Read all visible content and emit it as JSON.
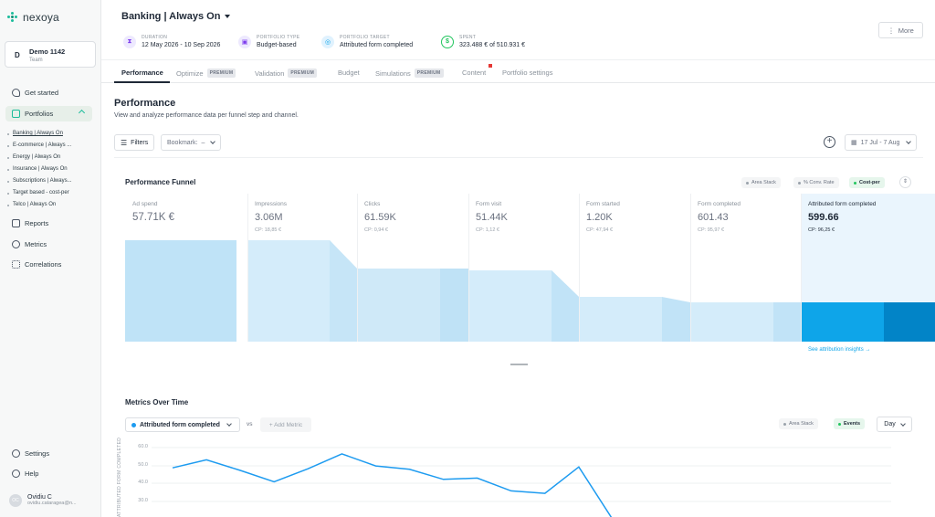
{
  "app": {
    "logo_text": "nexoya"
  },
  "team": {
    "initial": "D",
    "name": "Demo 1142",
    "type": "Team"
  },
  "sidebar": {
    "get_started": "Get started",
    "portfolios": "Portfolios",
    "portfolio_items": [
      "Banking | Always On",
      "E-commerce | Always ...",
      "Energy | Always On",
      "Insurance | Always On",
      "Subscriptions | Always...",
      "Target based - cost-per",
      "Telco | Always On"
    ],
    "reports": "Reports",
    "metrics": "Metrics",
    "correlations": "Correlations",
    "settings": "Settings",
    "help": "Help"
  },
  "user": {
    "initials": "OC",
    "name": "Ovidiu C",
    "email": "ovidiu.cataragea@n..."
  },
  "header": {
    "title": "Banking | Always On",
    "more_label": "More",
    "meta": [
      {
        "label": "DURATION",
        "value": "12 May 2026 - 10 Sep 2026",
        "icon": "hourglass-icon"
      },
      {
        "label": "PORTFOLIO TYPE",
        "value": "Budget-based",
        "icon": "basket-icon"
      },
      {
        "label": "PORTFOLIO TARGET",
        "value": "Attributed form completed",
        "icon": "target-icon"
      },
      {
        "label": "SPENT",
        "value": "323.488 € of 510.931 €",
        "icon": "dollar-icon"
      }
    ]
  },
  "tabs": [
    {
      "label": "Performance",
      "premium": false
    },
    {
      "label": "Optimize",
      "premium": true
    },
    {
      "label": "Validation",
      "premium": true
    },
    {
      "label": "Budget",
      "premium": false
    },
    {
      "label": "Simulations",
      "premium": true
    },
    {
      "label": "Content",
      "premium": false
    },
    {
      "label": "Portfolio settings",
      "premium": false
    }
  ],
  "premium_label": "PREMIUM",
  "performance": {
    "title": "Performance",
    "subtitle": "View and analyze performance data per funnel step and channel.",
    "filters_label": "Filters",
    "bookmark_label": "Bookmark:",
    "bookmark_value": "–",
    "date_range": "17 Jul - 7 Aug"
  },
  "funnel": {
    "title": "Performance Funnel",
    "toggles": [
      "Area Stack",
      "% Conv. Rate",
      "Cost-per"
    ],
    "active_toggle": "Cost-per",
    "attribution_link": "See attribution insights →",
    "stages": [
      {
        "label": "Ad spend",
        "value": "57.71K €",
        "cp": ""
      },
      {
        "label": "Impressions",
        "value": "3.06M",
        "cp": "CP: 18,85 €"
      },
      {
        "label": "Clicks",
        "value": "61.59K",
        "cp": "CP: 0,94 €"
      },
      {
        "label": "Form visit",
        "value": "51.44K",
        "cp": "CP: 1,12 €"
      },
      {
        "label": "Form started",
        "value": "1.20K",
        "cp": "CP: 47,94 €"
      },
      {
        "label": "Form completed",
        "value": "601.43",
        "cp": "CP: 95,97 €"
      },
      {
        "label": "Attributed form completed",
        "value": "599.66",
        "cp": "CP: 96,25 €"
      }
    ]
  },
  "metrics_over_time": {
    "title": "Metrics Over Time",
    "selected_metric": "Attributed form completed",
    "vs_label": "vs",
    "add_metric_label": "+ Add Metric",
    "toggles": [
      "Area Stack",
      "Events"
    ],
    "active_toggle": "Events",
    "granularity": "Day",
    "y_axis_label": "ATTRIBUTED FORM COMPLETED",
    "y_ticks": [
      "60.0",
      "50.0",
      "40.0",
      "30.0"
    ]
  },
  "chart_data": {
    "type": "line",
    "title": "Metrics Over Time",
    "ylabel": "ATTRIBUTED FORM COMPLETED",
    "ylim": [
      20,
      60
    ],
    "series": [
      {
        "name": "Attributed form completed",
        "color": "#1d9bf0",
        "values": [
          48.7,
          53.2,
          47.3,
          41.0,
          48.2,
          56.5,
          49.8,
          47.9,
          42.3,
          43.0,
          35.9,
          34.5,
          49.2,
          20
        ]
      }
    ]
  }
}
